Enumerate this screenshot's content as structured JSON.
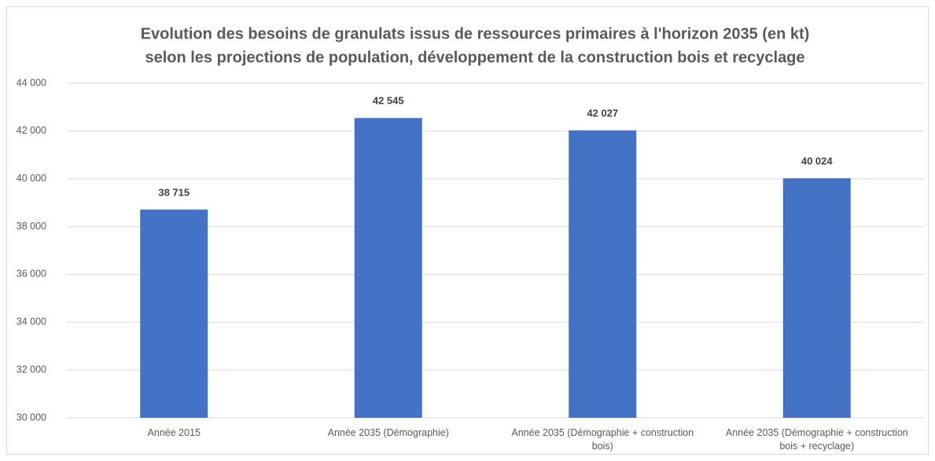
{
  "chart_data": {
    "type": "bar",
    "title": [
      "Evolution des besoins de granulats issus de ressources primaires à l'horizon 2035 (en kt)",
      "selon les projections de population, développement de la construction bois et recyclage"
    ],
    "categories": [
      "Année 2015",
      "Année 2035 (Démographie)",
      "Année 2035 (Démographie + construction bois)",
      "Année 2035 (Démographie + construction bois + recyclage)"
    ],
    "values": [
      38715,
      42545,
      42027,
      40024
    ],
    "value_labels": [
      "38 715",
      "42 545",
      "42 027",
      "40 024"
    ],
    "color": "#4472c4",
    "ylim": [
      30000,
      44000
    ],
    "yticks": [
      {
        "value": 30000,
        "label": "30 000"
      },
      {
        "value": 32000,
        "label": "32 000"
      },
      {
        "value": 34000,
        "label": "34 000"
      },
      {
        "value": 36000,
        "label": "36 000"
      },
      {
        "value": 38000,
        "label": "38 000"
      },
      {
        "value": 40000,
        "label": "40 000"
      },
      {
        "value": 42000,
        "label": "42 000"
      },
      {
        "value": 44000,
        "label": "44 000"
      }
    ],
    "grid": true
  }
}
